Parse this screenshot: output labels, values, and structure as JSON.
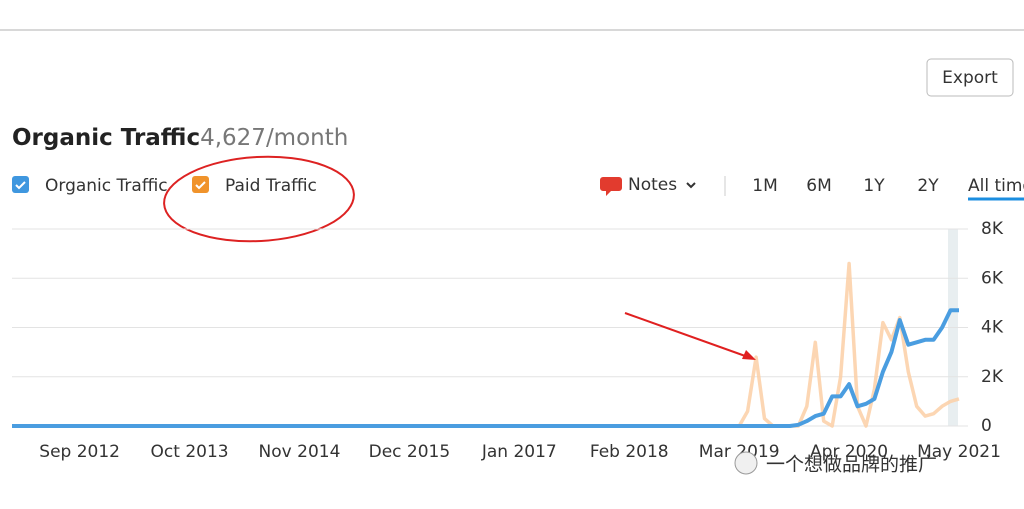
{
  "ui": {
    "export": "Export",
    "notes": "Notes",
    "ranges": [
      "1M",
      "6M",
      "1Y",
      "2Y",
      "All time"
    ],
    "watermark": "一个想做品牌的推广"
  },
  "chart_data": {
    "type": "line",
    "title": "Organic Traffic",
    "subtitle": "4,627/month",
    "x": [
      "2012-01",
      "2018-12",
      "2019-01",
      "2019-02",
      "2019-03",
      "2019-04",
      "2019-05",
      "2019-06",
      "2019-07",
      "2019-08",
      "2019-09",
      "2019-10",
      "2019-11",
      "2019-12",
      "2020-01",
      "2020-02",
      "2020-03",
      "2020-04",
      "2020-05",
      "2020-06",
      "2020-07",
      "2020-08",
      "2020-09",
      "2020-10",
      "2020-11",
      "2020-12",
      "2021-01",
      "2021-02",
      "2021-03",
      "2021-04",
      "2021-05"
    ],
    "series": [
      {
        "name": "Paid Traffic",
        "color": "#fbcfa6",
        "values": [
          0,
          0,
          0,
          0,
          0,
          600,
          2800,
          300,
          0,
          0,
          0,
          0,
          800,
          3400,
          200,
          0,
          2000,
          6600,
          800,
          0,
          1500,
          4200,
          3500,
          4400,
          2200,
          800,
          400,
          500,
          800,
          1000,
          1100
        ]
      },
      {
        "name": "Organic Traffic",
        "color": "#4a9de0",
        "values": [
          0,
          0,
          0,
          0,
          0,
          0,
          0,
          0,
          0,
          0,
          0,
          50,
          200,
          400,
          500,
          1200,
          1200,
          1700,
          800,
          900,
          1100,
          2200,
          3000,
          4300,
          3300,
          3400,
          3500,
          3500,
          4000,
          4700,
          4700
        ]
      }
    ],
    "xlim": [
      "2012-01",
      "2021-05"
    ],
    "xticks": [
      {
        "value": "2012-09",
        "label": "Sep 2012"
      },
      {
        "value": "2013-10",
        "label": "Oct 2013"
      },
      {
        "value": "2014-11",
        "label": "Nov 2014"
      },
      {
        "value": "2015-12",
        "label": "Dec 2015"
      },
      {
        "value": "2017-01",
        "label": "Jan 2017"
      },
      {
        "value": "2018-02",
        "label": "Feb 2018"
      },
      {
        "value": "2019-03",
        "label": "Mar 2019"
      },
      {
        "value": "2020-04",
        "label": "Apr 2020"
      },
      {
        "value": "2021-05",
        "label": "May 2021"
      }
    ],
    "ylim": [
      0,
      8000
    ],
    "yticks": [
      0,
      {
        "value": 2000,
        "label": "2K"
      },
      {
        "value": 4000,
        "label": "4K"
      },
      {
        "value": 6000,
        "label": "6K"
      },
      {
        "value": 8000,
        "label": "8K"
      }
    ],
    "grid": true
  }
}
